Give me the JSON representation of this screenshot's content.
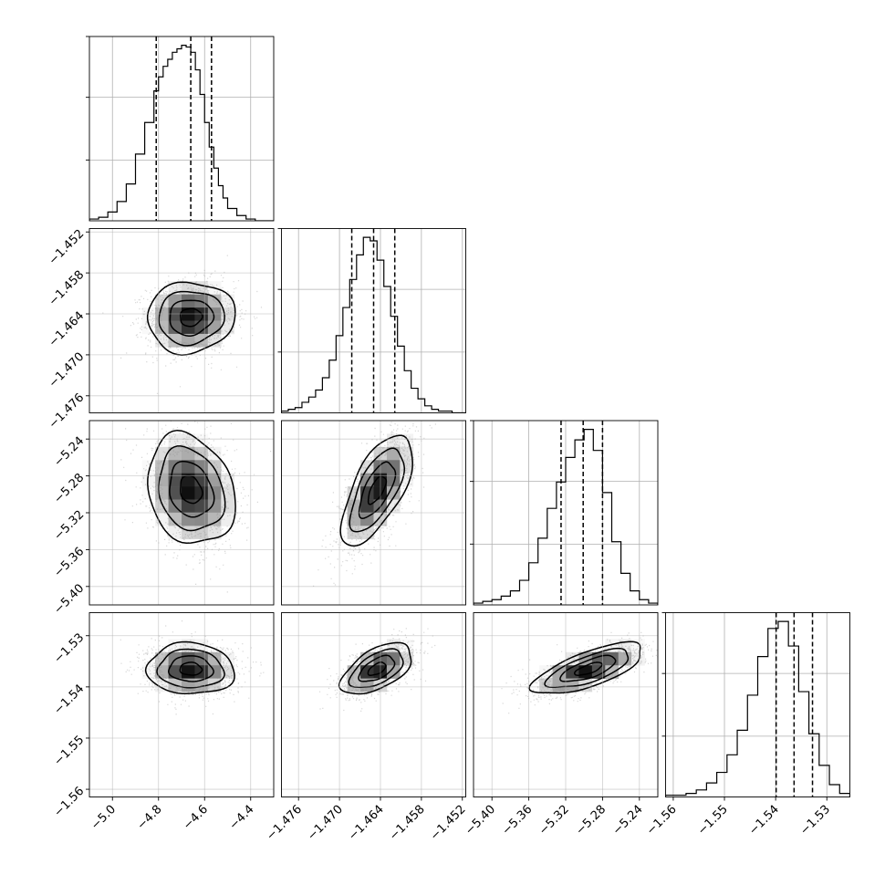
{
  "chart_data": {
    "type": "corner",
    "n_params": 4,
    "grid": true,
    "params": [
      {
        "mean": -4.66,
        "sd": 0.095,
        "range": [
          -5.1,
          -4.3
        ],
        "ticks": [
          -5.0,
          -4.8,
          -4.6,
          -4.4
        ],
        "tick_labels": [
          "−5.0",
          "−4.8",
          "−4.6",
          "−4.4"
        ],
        "quantiles": [
          -4.81,
          -4.66,
          -4.57
        ]
      },
      {
        "mean": -1.4645,
        "sd": 0.0026,
        "range": [
          -1.4785,
          -1.4515
        ],
        "ticks": [
          -1.476,
          -1.47,
          -1.464,
          -1.458,
          -1.452
        ],
        "tick_labels": [
          "−1.476",
          "−1.470",
          "−1.464",
          "−1.458",
          "−1.452"
        ],
        "quantiles": [
          -1.4682,
          -1.465,
          -1.4619
        ]
      },
      {
        "mean": -5.295,
        "sd": 0.03,
        "range": [
          -5.42,
          -5.22
        ],
        "ticks": [
          -5.4,
          -5.36,
          -5.32,
          -5.28,
          -5.24
        ],
        "tick_labels": [
          "−5.40",
          "−5.36",
          "−5.32",
          "−5.28",
          "−5.24"
        ],
        "quantiles": [
          -5.325,
          -5.301,
          -5.28
        ]
      },
      {
        "mean": -1.5365,
        "sd": 0.0025,
        "range": [
          -1.5615,
          -1.5255
        ],
        "ticks": [
          -1.56,
          -1.55,
          -1.54,
          -1.53
        ],
        "tick_labels": [
          "−1.56",
          "−1.55",
          "−1.54",
          "−1.53"
        ],
        "quantiles": [
          -1.5399,
          -1.5364,
          -1.5328
        ]
      }
    ],
    "correlations": [
      {
        "pair": [
          0,
          1
        ],
        "rho": 0.05
      },
      {
        "pair": [
          0,
          2
        ],
        "rho": -0.2
      },
      {
        "pair": [
          1,
          2
        ],
        "rho": 0.65
      },
      {
        "pair": [
          0,
          3
        ],
        "rho": -0.05
      },
      {
        "pair": [
          1,
          3
        ],
        "rho": 0.55
      },
      {
        "pair": [
          2,
          3
        ],
        "rho": 0.7
      }
    ],
    "histograms": [
      {
        "bin_edges": [
          -5.1,
          -5.06,
          -5.02,
          -4.98,
          -4.94,
          -4.9,
          -4.86,
          -4.82,
          -4.8,
          -4.78,
          -4.76,
          -4.74,
          -4.72,
          -4.7,
          -4.68,
          -4.66,
          -4.64,
          -4.62,
          -4.6,
          -4.58,
          -4.56,
          -4.54,
          -4.52,
          -4.5,
          -4.46,
          -4.42,
          -4.38,
          -4.34,
          -4.3
        ],
        "counts": [
          1,
          2,
          5,
          11,
          21,
          38,
          56,
          74,
          82,
          88,
          92,
          96,
          98,
          100,
          99,
          96,
          86,
          72,
          56,
          42,
          30,
          20,
          13,
          7,
          3,
          1,
          0,
          0
        ]
      },
      {
        "bin_edges": [
          -1.4785,
          -1.4775,
          -1.4765,
          -1.4755,
          -1.4745,
          -1.4735,
          -1.4725,
          -1.4715,
          -1.4705,
          -1.4695,
          -1.4685,
          -1.4675,
          -1.4665,
          -1.4655,
          -1.4645,
          -1.4635,
          -1.4625,
          -1.4615,
          -1.4605,
          -1.4595,
          -1.4585,
          -1.4575,
          -1.4565,
          -1.4555,
          -1.4545,
          -1.4535,
          -1.4525,
          -1.4515
        ],
        "counts": [
          1,
          2,
          3,
          6,
          9,
          13,
          20,
          30,
          44,
          60,
          76,
          90,
          100,
          98,
          87,
          72,
          55,
          38,
          24,
          14,
          8,
          4,
          2,
          1,
          1,
          0,
          0
        ]
      },
      {
        "bin_edges": [
          -5.42,
          -5.41,
          -5.4,
          -5.39,
          -5.38,
          -5.37,
          -5.36,
          -5.35,
          -5.34,
          -5.33,
          -5.32,
          -5.31,
          -5.3,
          -5.29,
          -5.28,
          -5.27,
          -5.26,
          -5.25,
          -5.24,
          -5.23,
          -5.22
        ],
        "counts": [
          1,
          2,
          3,
          5,
          8,
          14,
          24,
          38,
          55,
          70,
          84,
          94,
          100,
          88,
          64,
          36,
          18,
          8,
          3,
          1
        ]
      },
      {
        "bin_edges": [
          -1.5615,
          -1.5595,
          -1.5575,
          -1.5555,
          -1.5535,
          -1.5515,
          -1.5495,
          -1.5475,
          -1.5455,
          -1.5435,
          -1.5415,
          -1.5395,
          -1.5375,
          -1.5355,
          -1.5335,
          -1.5315,
          -1.5295,
          -1.5275,
          -1.5255
        ],
        "counts": [
          1,
          1,
          2,
          4,
          8,
          14,
          24,
          38,
          58,
          80,
          96,
          100,
          86,
          60,
          36,
          18,
          7,
          2
        ]
      }
    ]
  }
}
